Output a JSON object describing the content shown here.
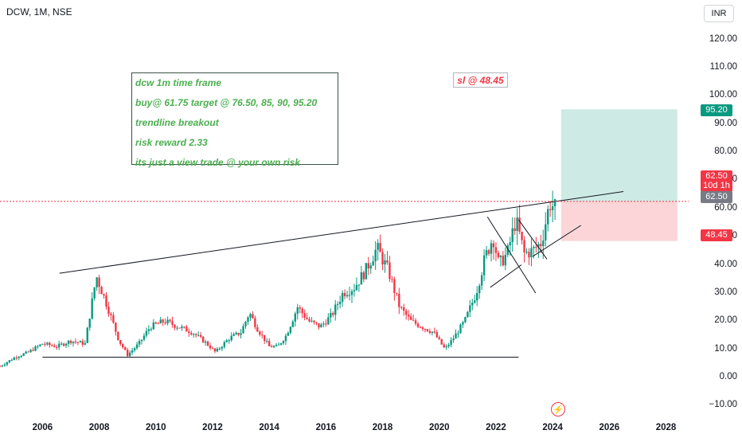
{
  "header": {
    "symbol": "DCW, 1M, NSE",
    "currency": "INR"
  },
  "note_box": {
    "lines": [
      "dcw 1m time frame",
      "buy@ 61.75 target @ 76.50, 85, 90,  95.20",
      "trendline breakout",
      "risk reward 2.33",
      "its just a view trade @ your own risk"
    ]
  },
  "sl_box": {
    "text": "sl @ 48.45"
  },
  "price_labels": {
    "target": "95.20",
    "last": "62.50",
    "countdown": "10d 1h",
    "line": "62.50",
    "stop": "48.45"
  },
  "colors": {
    "up": "#089981",
    "down": "#f23645",
    "target_zone": "#cdeae4",
    "stop_zone": "#fbd5d7",
    "note_text": "#4caf50",
    "target_label": "#089981"
  },
  "chart_data": {
    "type": "candlestick",
    "symbol": "DCW",
    "interval": "1M",
    "exchange": "NSE",
    "y_ticks": [
      "120.00",
      "110.00",
      "100.00",
      "90.00",
      "80.00",
      "70.00",
      "60.00",
      "50.00",
      "40.00",
      "30.00",
      "20.00",
      "10.00",
      "0.00",
      "−10.00"
    ],
    "x_ticks": [
      "2006",
      "2008",
      "2010",
      "2012",
      "2014",
      "2016",
      "2018",
      "2020",
      "2022",
      "2024",
      "2026",
      "2028"
    ],
    "ylim": [
      -13,
      134
    ],
    "xlim": [
      2004.5,
      2028.8
    ],
    "current_price": 62.5,
    "position": {
      "entry": 62.5,
      "target": 95.2,
      "stop": 48.45,
      "start": 2024.3,
      "end": 2028.4
    },
    "trendlines": [
      {
        "from": [
          2006.6,
          37.0
        ],
        "to": [
          2026.5,
          66.0
        ]
      },
      {
        "from": [
          2006.0,
          7.2
        ],
        "to": [
          2022.8,
          7.2
        ]
      },
      {
        "from": [
          2021.7,
          57.0
        ],
        "to": [
          2023.4,
          30.0
        ]
      },
      {
        "from": [
          2021.8,
          32.0
        ],
        "to": [
          2022.9,
          40.0
        ]
      },
      {
        "from": [
          2022.8,
          56.0
        ],
        "to": [
          2023.8,
          42.0
        ]
      },
      {
        "from": [
          2023.3,
          43.0
        ],
        "to": [
          2025.0,
          54.0
        ]
      }
    ],
    "monthly_close_path": [
      [
        2004.5,
        4
      ],
      [
        2005.0,
        7
      ],
      [
        2005.5,
        9
      ],
      [
        2006.0,
        12
      ],
      [
        2006.5,
        11
      ],
      [
        2007.0,
        13
      ],
      [
        2007.5,
        12
      ],
      [
        2007.9,
        36
      ],
      [
        2008.3,
        25
      ],
      [
        2008.7,
        13
      ],
      [
        2009.0,
        8
      ],
      [
        2009.4,
        12
      ],
      [
        2009.8,
        18
      ],
      [
        2010.3,
        20
      ],
      [
        2010.8,
        18
      ],
      [
        2011.3,
        16
      ],
      [
        2011.8,
        12
      ],
      [
        2012.1,
        9
      ],
      [
        2012.6,
        14
      ],
      [
        2013.0,
        16
      ],
      [
        2013.3,
        23
      ],
      [
        2013.6,
        17
      ],
      [
        2014.0,
        11
      ],
      [
        2014.3,
        11
      ],
      [
        2014.6,
        15
      ],
      [
        2015.0,
        25
      ],
      [
        2015.4,
        20
      ],
      [
        2015.8,
        18
      ],
      [
        2016.2,
        22
      ],
      [
        2016.6,
        30
      ],
      [
        2017.0,
        32
      ],
      [
        2017.4,
        38
      ],
      [
        2017.8,
        46
      ],
      [
        2018.2,
        38
      ],
      [
        2018.6,
        25
      ],
      [
        2019.0,
        20
      ],
      [
        2019.4,
        18
      ],
      [
        2019.8,
        16
      ],
      [
        2020.2,
        10
      ],
      [
        2020.5,
        14
      ],
      [
        2020.9,
        20
      ],
      [
        2021.3,
        30
      ],
      [
        2021.6,
        42
      ],
      [
        2021.9,
        50
      ],
      [
        2022.1,
        40
      ],
      [
        2022.4,
        44
      ],
      [
        2022.7,
        56
      ],
      [
        2023.0,
        44
      ],
      [
        2023.3,
        45
      ],
      [
        2023.6,
        48
      ],
      [
        2023.9,
        62
      ],
      [
        2024.1,
        60
      ],
      [
        2024.15,
        62.5
      ]
    ]
  }
}
